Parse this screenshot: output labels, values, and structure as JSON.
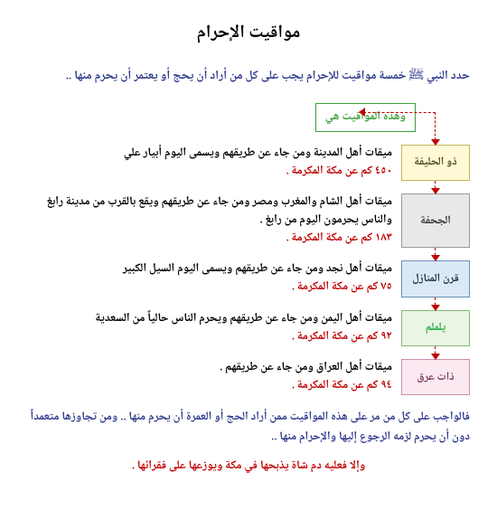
{
  "title": "مواقيت الإحرام",
  "intro": "حدد النبي ﷺ خمسة مواقيت للإحرام يجب على كل من أراد أن يحج أو يعتمر أن يحرم منها ..",
  "noteBox": "وهذه المواقيت هي",
  "miqats": [
    {
      "name": "ذو الحليفة",
      "desc": "ميقات أهل المدينة ومن جاء عن طريقهم ويسمى اليوم أبيار علي",
      "dist": "٤٥٠ كم عن مكة المكرمة ."
    },
    {
      "name": "الجحفة",
      "desc": "ميقات أهل الشام والمغرب ومصر ومن جاء عن طريقهم ويقع بالقرب من مدينة رابغ والناس يحرمون اليوم من رابغ .",
      "dist": "١٨٣ كم عن مكة المكرمة ."
    },
    {
      "name": "قرن المنازل",
      "desc": "ميقات أهل نجد ومن جاء عن طريقهم ويسمى اليوم السيل الكبير",
      "dist": "٧٥ كم عن مكة المكرمة ."
    },
    {
      "name": "يلملم",
      "desc": "ميقات أهل اليمن ومن جاء عن طريقهم ويحرم الناس حالياً من السعدية",
      "dist": "٩٢ كم عن مكة المكرمة ."
    },
    {
      "name": "ذات عرق",
      "desc": "ميقات أهل العراق ومن جاء عن طريقهم .",
      "dist": "٩٤ كم عن مكة المكرمة ."
    }
  ],
  "labelClasses": [
    "c0",
    "c1",
    "c2",
    "c3",
    "c4"
  ],
  "footer1": "فالواجب على كل من مر على هذه المواقيت ممن أراد الحج أو العمرة أن يحرم منها .. ومن تجاوزها متعمداً دون أن يحرم لزمه الرجوع إليها والإحرام منها ..",
  "footer2": "وإلا فعليه دم شاة يذبحها في مكة ويوزعها على فقرائها ."
}
